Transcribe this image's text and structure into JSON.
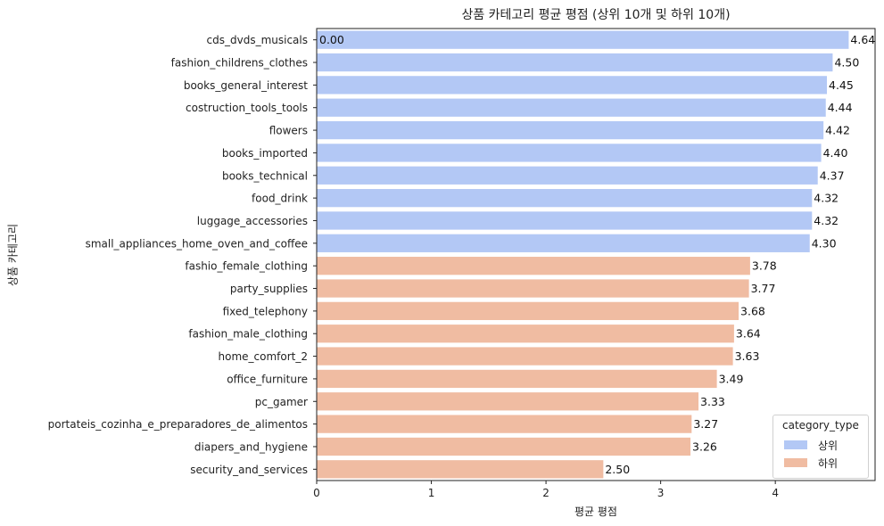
{
  "chart_data": {
    "type": "bar",
    "orientation": "horizontal",
    "title": "상품 카테고리 평균 평점 (상위 10개 및 하위 10개)",
    "xlabel": "평균 평점",
    "ylabel": "상품 카테고리",
    "xlim": [
      0,
      4.87
    ],
    "xticks": [
      0,
      1,
      2,
      3,
      4
    ],
    "grid": false,
    "legend": {
      "title": "category_type",
      "placement": "lower-right",
      "entries": [
        {
          "name": "상위",
          "color": "#b3c8f5"
        },
        {
          "name": "하위",
          "color": "#f0bca2"
        }
      ]
    },
    "categories": [
      "cds_dvds_musicals",
      "fashion_childrens_clothes",
      "books_general_interest",
      "costruction_tools_tools",
      "flowers",
      "books_imported",
      "books_technical",
      "food_drink",
      "luggage_accessories",
      "small_appliances_home_oven_and_coffee",
      "fashio_female_clothing",
      "party_supplies",
      "fixed_telephony",
      "fashion_male_clothing",
      "home_comfort_2",
      "office_furniture",
      "pc_gamer",
      "portateis_cozinha_e_preparadores_de_alimentos",
      "diapers_and_hygiene",
      "security_and_services"
    ],
    "values": [
      4.64,
      4.5,
      4.45,
      4.44,
      4.42,
      4.4,
      4.37,
      4.32,
      4.32,
      4.3,
      3.78,
      3.77,
      3.68,
      3.64,
      3.63,
      3.49,
      3.33,
      3.27,
      3.26,
      2.5
    ],
    "value_labels": [
      "4.64",
      "4.50",
      "4.45",
      "4.44",
      "4.42",
      "4.40",
      "4.37",
      "4.32",
      "4.32",
      "4.30",
      "3.78",
      "3.77",
      "3.68",
      "3.64",
      "3.63",
      "3.49",
      "3.33",
      "3.27",
      "3.26",
      "2.50"
    ],
    "group": [
      "상위",
      "상위",
      "상위",
      "상위",
      "상위",
      "상위",
      "상위",
      "상위",
      "상위",
      "상위",
      "하위",
      "하위",
      "하위",
      "하위",
      "하위",
      "하위",
      "하위",
      "하위",
      "하위",
      "하위"
    ],
    "annotations": [
      "0.00"
    ]
  }
}
